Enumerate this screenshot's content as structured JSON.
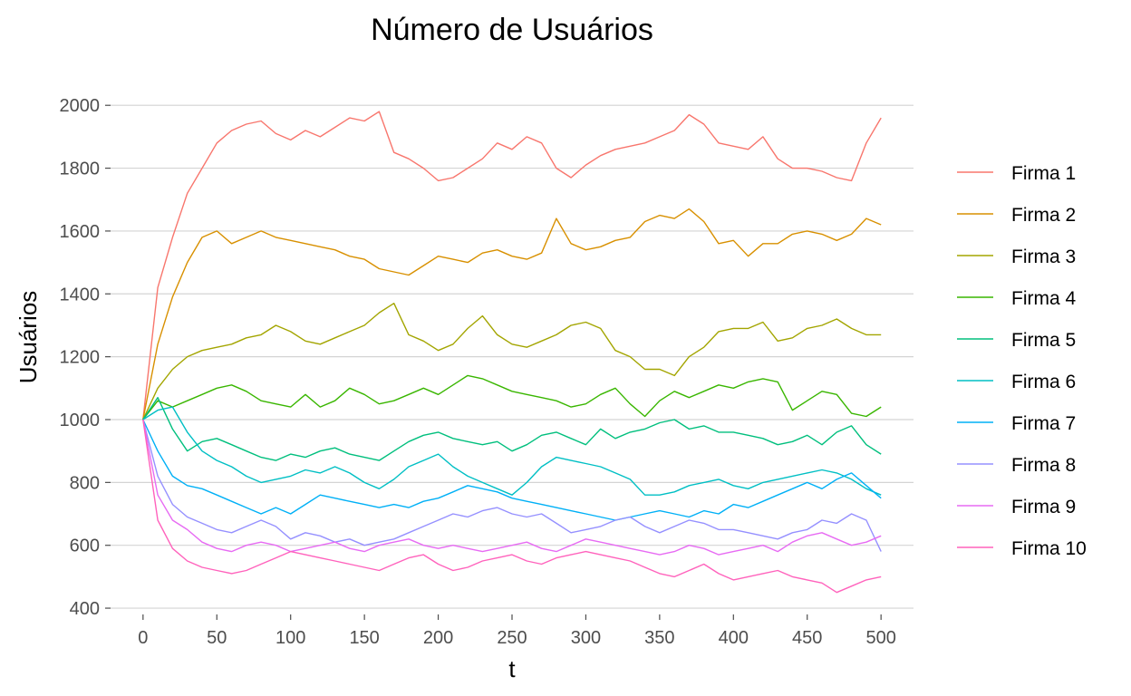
{
  "chart_data": {
    "type": "line",
    "title": "Número de Usuários",
    "xlabel": "t",
    "ylabel": "Usuários",
    "xlim": [
      -22,
      522
    ],
    "ylim": [
      380,
      2090
    ],
    "xticks": [
      0,
      50,
      100,
      150,
      200,
      250,
      300,
      350,
      400,
      450,
      500
    ],
    "yticks": [
      400,
      600,
      800,
      1000,
      1200,
      1400,
      1600,
      1800,
      2000
    ],
    "grid": "horizontal",
    "legend": "right",
    "x_start": 0,
    "x_step": 10,
    "series": [
      {
        "name": "Firma 1",
        "color": "#F8766D",
        "values": [
          1000,
          1420,
          1580,
          1720,
          1800,
          1880,
          1920,
          1940,
          1950,
          1910,
          1890,
          1920,
          1900,
          1930,
          1960,
          1950,
          1980,
          1850,
          1830,
          1800,
          1760,
          1770,
          1800,
          1830,
          1880,
          1860,
          1900,
          1880,
          1800,
          1770,
          1810,
          1840,
          1860,
          1870,
          1880,
          1900,
          1920,
          1970,
          1940,
          1880,
          1870,
          1860,
          1900,
          1830,
          1800,
          1800,
          1790,
          1770,
          1760,
          1880,
          1960
        ]
      },
      {
        "name": "Firma 2",
        "color": "#D89000",
        "values": [
          1000,
          1240,
          1390,
          1500,
          1580,
          1600,
          1560,
          1580,
          1600,
          1580,
          1570,
          1560,
          1550,
          1540,
          1520,
          1510,
          1480,
          1470,
          1460,
          1490,
          1520,
          1510,
          1500,
          1530,
          1540,
          1520,
          1510,
          1530,
          1640,
          1560,
          1540,
          1550,
          1570,
          1580,
          1630,
          1650,
          1640,
          1670,
          1630,
          1560,
          1570,
          1520,
          1560,
          1560,
          1590,
          1600,
          1590,
          1570,
          1590,
          1640,
          1620
        ]
      },
      {
        "name": "Firma 3",
        "color": "#A3A500",
        "values": [
          1000,
          1100,
          1160,
          1200,
          1220,
          1230,
          1240,
          1260,
          1270,
          1300,
          1280,
          1250,
          1240,
          1260,
          1280,
          1300,
          1340,
          1370,
          1270,
          1250,
          1220,
          1240,
          1290,
          1330,
          1270,
          1240,
          1230,
          1250,
          1270,
          1300,
          1310,
          1290,
          1220,
          1200,
          1160,
          1160,
          1140,
          1200,
          1230,
          1280,
          1290,
          1290,
          1310,
          1250,
          1260,
          1290,
          1300,
          1320,
          1290,
          1270,
          1270
        ]
      },
      {
        "name": "Firma 4",
        "color": "#39B600",
        "values": [
          1000,
          1060,
          1040,
          1060,
          1080,
          1100,
          1110,
          1090,
          1060,
          1050,
          1040,
          1080,
          1040,
          1060,
          1100,
          1080,
          1050,
          1060,
          1080,
          1100,
          1080,
          1110,
          1140,
          1130,
          1110,
          1090,
          1080,
          1070,
          1060,
          1040,
          1050,
          1080,
          1100,
          1050,
          1010,
          1060,
          1090,
          1070,
          1090,
          1110,
          1100,
          1120,
          1130,
          1120,
          1030,
          1060,
          1090,
          1080,
          1020,
          1010,
          1040
        ]
      },
      {
        "name": "Firma 5",
        "color": "#00BF7D",
        "values": [
          1000,
          1070,
          970,
          900,
          930,
          940,
          920,
          900,
          880,
          870,
          890,
          880,
          900,
          910,
          890,
          880,
          870,
          900,
          930,
          950,
          960,
          940,
          930,
          920,
          930,
          900,
          920,
          950,
          960,
          940,
          920,
          970,
          940,
          960,
          970,
          990,
          1000,
          970,
          980,
          960,
          960,
          950,
          940,
          920,
          930,
          950,
          920,
          960,
          980,
          920,
          890
        ]
      },
      {
        "name": "Firma 6",
        "color": "#00BFC4",
        "values": [
          1000,
          1030,
          1040,
          960,
          900,
          870,
          850,
          820,
          800,
          810,
          820,
          840,
          830,
          850,
          830,
          800,
          780,
          810,
          850,
          870,
          890,
          850,
          820,
          800,
          780,
          760,
          800,
          850,
          880,
          870,
          860,
          850,
          830,
          810,
          760,
          760,
          770,
          790,
          800,
          810,
          790,
          780,
          800,
          810,
          820,
          830,
          840,
          830,
          810,
          780,
          760
        ]
      },
      {
        "name": "Firma 7",
        "color": "#00B0F6",
        "values": [
          1000,
          900,
          820,
          790,
          780,
          760,
          740,
          720,
          700,
          720,
          700,
          730,
          760,
          750,
          740,
          730,
          720,
          730,
          720,
          740,
          750,
          770,
          790,
          780,
          770,
          750,
          740,
          730,
          720,
          710,
          700,
          690,
          680,
          690,
          700,
          710,
          700,
          690,
          710,
          700,
          730,
          720,
          740,
          760,
          780,
          800,
          780,
          810,
          830,
          790,
          750
        ]
      },
      {
        "name": "Firma 8",
        "color": "#9590FF",
        "values": [
          1000,
          820,
          730,
          690,
          670,
          650,
          640,
          660,
          680,
          660,
          620,
          640,
          630,
          610,
          620,
          600,
          610,
          620,
          640,
          660,
          680,
          700,
          690,
          710,
          720,
          700,
          690,
          700,
          670,
          640,
          650,
          660,
          680,
          690,
          660,
          640,
          660,
          680,
          670,
          650,
          650,
          640,
          630,
          620,
          640,
          650,
          680,
          670,
          700,
          680,
          580
        ]
      },
      {
        "name": "Firma 9",
        "color": "#E76BF3",
        "values": [
          1000,
          760,
          680,
          650,
          610,
          590,
          580,
          600,
          610,
          600,
          580,
          590,
          600,
          610,
          590,
          580,
          600,
          610,
          620,
          600,
          590,
          600,
          590,
          580,
          590,
          600,
          610,
          590,
          580,
          600,
          620,
          610,
          600,
          590,
          580,
          570,
          580,
          600,
          590,
          570,
          580,
          590,
          600,
          580,
          610,
          630,
          640,
          620,
          600,
          610,
          630
        ]
      },
      {
        "name": "Firma 10",
        "color": "#FF62BC",
        "values": [
          1000,
          680,
          590,
          550,
          530,
          520,
          510,
          520,
          540,
          560,
          580,
          570,
          560,
          550,
          540,
          530,
          520,
          540,
          560,
          570,
          540,
          520,
          530,
          550,
          560,
          570,
          550,
          540,
          560,
          570,
          580,
          570,
          560,
          550,
          530,
          510,
          500,
          520,
          540,
          510,
          490,
          500,
          510,
          520,
          500,
          490,
          480,
          450,
          470,
          490,
          500
        ]
      }
    ]
  }
}
